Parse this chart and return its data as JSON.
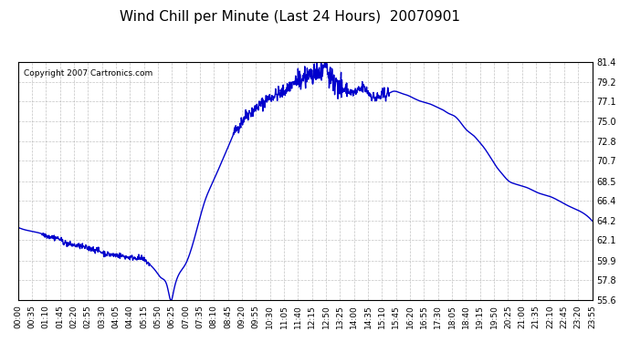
{
  "title": "Wind Chill per Minute (Last 24 Hours)  20070901",
  "copyright": "Copyright 2007 Cartronics.com",
  "line_color": "#0000CC",
  "background_color": "#ffffff",
  "plot_bg_color": "#ffffff",
  "grid_color": "#aaaaaa",
  "ylim": [
    55.6,
    81.4
  ],
  "yticks": [
    55.6,
    57.8,
    59.9,
    62.1,
    64.2,
    66.4,
    68.5,
    70.7,
    72.8,
    75.0,
    77.1,
    79.2,
    81.4
  ],
  "xtick_labels": [
    "00:00",
    "00:35",
    "01:10",
    "01:45",
    "02:20",
    "02:55",
    "03:30",
    "04:05",
    "04:40",
    "05:15",
    "05:50",
    "06:25",
    "07:00",
    "07:35",
    "08:10",
    "08:45",
    "09:20",
    "09:55",
    "10:30",
    "11:05",
    "11:40",
    "12:15",
    "12:50",
    "13:25",
    "14:00",
    "14:35",
    "15:10",
    "15:45",
    "16:20",
    "16:55",
    "17:30",
    "18:05",
    "18:40",
    "19:15",
    "19:50",
    "20:25",
    "21:00",
    "21:35",
    "22:10",
    "22:45",
    "23:20",
    "23:55"
  ],
  "line_width": 1.0
}
